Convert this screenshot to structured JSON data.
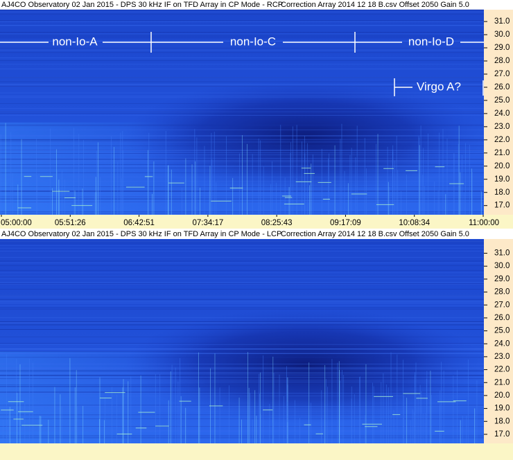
{
  "chart_data": [
    {
      "type": "spectrogram",
      "title": "AJ4CO Observatory 02 Jan 2015 - DPS 30 kHz IF on TFD Array in CP Mode - RCP",
      "subtitle": "Correction Array 2014 12 18 B.csv  Offset 2050  Gain 5.0",
      "ylim": [
        16.3,
        31.9
      ],
      "yticks": [
        {
          "value": 17,
          "label": "17.0"
        },
        {
          "value": 18,
          "label": "18.0"
        },
        {
          "value": 19,
          "label": "19.0"
        },
        {
          "value": 20,
          "label": "20.0"
        },
        {
          "value": 21,
          "label": "21.0"
        },
        {
          "value": 22,
          "label": "22.0"
        },
        {
          "value": 23,
          "label": "23.0"
        },
        {
          "value": 24,
          "label": "24.0"
        },
        {
          "value": 25,
          "label": "25.0"
        },
        {
          "value": 26,
          "label": "26.0"
        },
        {
          "value": 27,
          "label": "27.0"
        },
        {
          "value": 28,
          "label": "28.0"
        },
        {
          "value": 29,
          "label": "29.0"
        },
        {
          "value": 30,
          "label": "30.0"
        },
        {
          "value": 31,
          "label": "31.0"
        }
      ],
      "xticks": [
        "05:00:00",
        "05:51:26",
        "06:42:51",
        "07:34:17",
        "08:25:43",
        "09:17:09",
        "10:08:34",
        "11:00:00"
      ],
      "annotations": [
        "non-Io-A",
        "non-Io-C",
        "non-Io-D",
        "Virgo A?"
      ]
    },
    {
      "type": "spectrogram",
      "title": "AJ4CO Observatory 02 Jan 2015 - DPS 30 kHz IF on TFD Array in CP Mode - LCP",
      "subtitle": "Correction Array 2014 12 18 B.csv  Offset 2050  Gain 5.0",
      "ylim": [
        16.3,
        32.1
      ],
      "yticks": [
        {
          "value": 17,
          "label": "17.0"
        },
        {
          "value": 18,
          "label": "18.0"
        },
        {
          "value": 19,
          "label": "19.0"
        },
        {
          "value": 20,
          "label": "20.0"
        },
        {
          "value": 21,
          "label": "21.0"
        },
        {
          "value": 22,
          "label": "22.0"
        },
        {
          "value": 23,
          "label": "23.0"
        },
        {
          "value": 24,
          "label": "24.0"
        },
        {
          "value": 25,
          "label": "25.0"
        },
        {
          "value": 26,
          "label": "26.0"
        },
        {
          "value": 27,
          "label": "27.0"
        },
        {
          "value": 28,
          "label": "28.0"
        },
        {
          "value": 29,
          "label": "29.0"
        },
        {
          "value": 30,
          "label": "30.0"
        },
        {
          "value": 31,
          "label": "31.0"
        }
      ]
    }
  ]
}
